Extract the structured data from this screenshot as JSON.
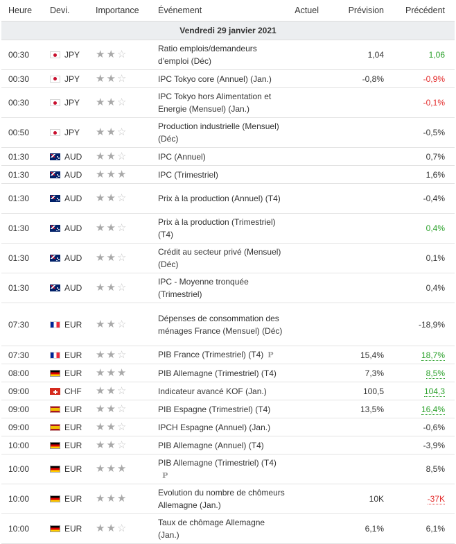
{
  "columns": [
    "Heure",
    "Devi.",
    "Importance",
    "Événement",
    "Actuel",
    "Prévision",
    "Précédent"
  ],
  "date_label": "Vendredi 29 janvier 2021",
  "colors": {
    "positive": "#2aa02a",
    "negative": "#e32b2b"
  },
  "events": [
    {
      "time": "00:30",
      "flag": "jp",
      "cur": "JPY",
      "stars": 2,
      "event": "Ratio emplois/demandeurs d'emploi (Déc)",
      "actual": "",
      "forecast": "1,04",
      "previous": "1,06",
      "prev_color": "pos",
      "prev_underline": false,
      "p": false,
      "h": 43
    },
    {
      "time": "00:30",
      "flag": "jp",
      "cur": "JPY",
      "stars": 2,
      "event": "IPC Tokyo core (Annuel) (Jan.)",
      "actual": "",
      "forecast": "-0,8%",
      "previous": "-0,9%",
      "prev_color": "neg",
      "prev_underline": false,
      "p": false,
      "h": 26
    },
    {
      "time": "00:30",
      "flag": "jp",
      "cur": "JPY",
      "stars": 2,
      "event": "IPC Tokyo hors Alimentation et Energie (Mensuel) (Jan.)",
      "actual": "",
      "forecast": "",
      "previous": "-0,1%",
      "prev_color": "neg",
      "prev_underline": false,
      "p": false,
      "h": 43
    },
    {
      "time": "00:50",
      "flag": "jp",
      "cur": "JPY",
      "stars": 2,
      "event": "Production industrielle (Mensuel) (Déc)",
      "actual": "",
      "forecast": "",
      "previous": "-0,5%",
      "prev_color": "",
      "prev_underline": false,
      "p": false,
      "h": 43
    },
    {
      "time": "01:30",
      "flag": "au",
      "cur": "AUD",
      "stars": 2,
      "event": "IPC (Annuel)",
      "actual": "",
      "forecast": "",
      "previous": "0,7%",
      "prev_color": "",
      "prev_underline": false,
      "p": false,
      "h": 26
    },
    {
      "time": "01:30",
      "flag": "au",
      "cur": "AUD",
      "stars": 3,
      "event": "IPC (Trimestriel)",
      "actual": "",
      "forecast": "",
      "previous": "1,6%",
      "prev_color": "",
      "prev_underline": false,
      "p": false,
      "h": 26
    },
    {
      "time": "01:30",
      "flag": "au",
      "cur": "AUD",
      "stars": 2,
      "event": "Prix à la production (Annuel) (T4)",
      "actual": "",
      "forecast": "",
      "previous": "-0,4%",
      "prev_color": "",
      "prev_underline": false,
      "p": false,
      "h": 43
    },
    {
      "time": "01:30",
      "flag": "au",
      "cur": "AUD",
      "stars": 2,
      "event": "Prix à la production (Trimestriel) (T4)",
      "actual": "",
      "forecast": "",
      "previous": "0,4%",
      "prev_color": "pos",
      "prev_underline": false,
      "p": false,
      "h": 43
    },
    {
      "time": "01:30",
      "flag": "au",
      "cur": "AUD",
      "stars": 2,
      "event": "Crédit au secteur privé (Mensuel) (Déc)",
      "actual": "",
      "forecast": "",
      "previous": "0,1%",
      "prev_color": "",
      "prev_underline": false,
      "p": false,
      "h": 43
    },
    {
      "time": "01:30",
      "flag": "au",
      "cur": "AUD",
      "stars": 2,
      "event": "IPC - Moyenne tronquée (Trimestriel)",
      "actual": "",
      "forecast": "",
      "previous": "0,4%",
      "prev_color": "",
      "prev_underline": false,
      "p": false,
      "h": 43
    },
    {
      "time": "07:30",
      "flag": "fr",
      "cur": "EUR",
      "stars": 2,
      "event": "Dépenses de consommation des ménages France (Mensuel) (Déc)",
      "actual": "",
      "forecast": "",
      "previous": "-18,9%",
      "prev_color": "",
      "prev_underline": false,
      "p": false,
      "h": 62
    },
    {
      "time": "07:30",
      "flag": "fr",
      "cur": "EUR",
      "stars": 2,
      "event": "PIB France (Trimestriel) (T4)",
      "actual": "",
      "forecast": "15,4%",
      "previous": "18,7%",
      "prev_color": "pos",
      "prev_underline": true,
      "p": true,
      "h": 26
    },
    {
      "time": "08:00",
      "flag": "de",
      "cur": "EUR",
      "stars": 3,
      "event": "PIB Allemagne (Trimestriel) (T4)",
      "actual": "",
      "forecast": "7,3%",
      "previous": "8,5%",
      "prev_color": "pos",
      "prev_underline": true,
      "p": false,
      "h": 26
    },
    {
      "time": "09:00",
      "flag": "ch",
      "cur": "CHF",
      "stars": 2,
      "event": "Indicateur avancé KOF (Jan.)",
      "actual": "",
      "forecast": "100,5",
      "previous": "104,3",
      "prev_color": "pos",
      "prev_underline": true,
      "p": false,
      "h": 26
    },
    {
      "time": "09:00",
      "flag": "es",
      "cur": "EUR",
      "stars": 2,
      "event": "PIB Espagne (Trimestriel) (T4)",
      "actual": "",
      "forecast": "13,5%",
      "previous": "16,4%",
      "prev_color": "pos",
      "prev_underline": true,
      "p": false,
      "h": 26
    },
    {
      "time": "09:00",
      "flag": "es",
      "cur": "EUR",
      "stars": 2,
      "event": "IPCH Espagne (Annuel) (Jan.)",
      "actual": "",
      "forecast": "",
      "previous": "-0,6%",
      "prev_color": "",
      "prev_underline": false,
      "p": false,
      "h": 26
    },
    {
      "time": "10:00",
      "flag": "de",
      "cur": "EUR",
      "stars": 2,
      "event": "PIB Allemagne (Annuel) (T4)",
      "actual": "",
      "forecast": "",
      "previous": "-3,9%",
      "prev_color": "",
      "prev_underline": false,
      "p": false,
      "h": 26
    },
    {
      "time": "10:00",
      "flag": "de",
      "cur": "EUR",
      "stars": 3,
      "event": "PIB Allemagne (Trimestriel) (T4)",
      "actual": "",
      "forecast": "",
      "previous": "8,5%",
      "prev_color": "",
      "prev_underline": false,
      "p": true,
      "p_newline": true,
      "h": 43
    },
    {
      "time": "10:00",
      "flag": "de",
      "cur": "EUR",
      "stars": 3,
      "event": "Evolution du nombre de chômeurs Allemagne (Jan.)",
      "actual": "",
      "forecast": "10K",
      "previous": "-37K",
      "prev_color": "neg",
      "prev_underline": true,
      "p": false,
      "h": 43
    },
    {
      "time": "10:00",
      "flag": "de",
      "cur": "EUR",
      "stars": 2,
      "event": "Taux de chômage Allemagne (Jan.)",
      "actual": "",
      "forecast": "6,1%",
      "previous": "6,1%",
      "prev_color": "",
      "prev_underline": false,
      "p": false,
      "h": 43
    }
  ]
}
